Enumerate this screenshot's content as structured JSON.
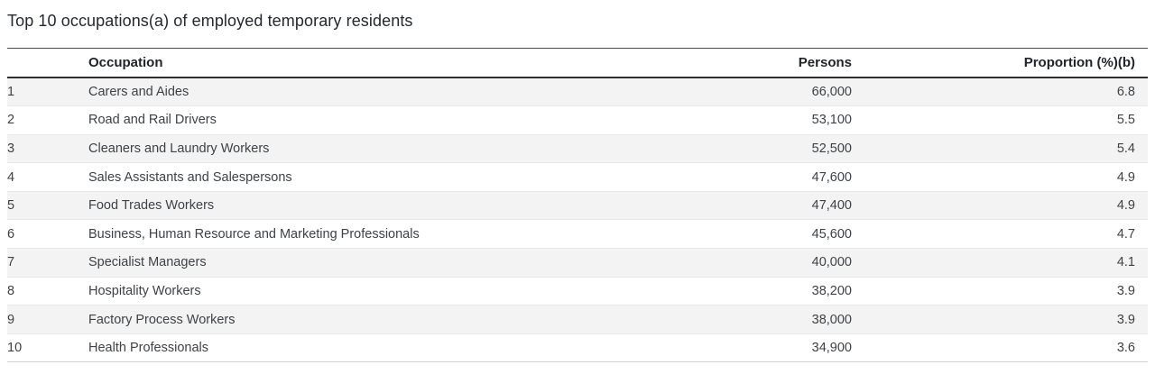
{
  "title": "Top 10 occupations(a) of employed temporary residents",
  "table": {
    "columns": {
      "rank": "",
      "occupation": "Occupation",
      "persons": "Persons",
      "proportion": "Proportion (%)(b)"
    },
    "rows": [
      {
        "rank": "1",
        "occupation": "Carers and Aides",
        "persons": "66,000",
        "proportion": "6.8"
      },
      {
        "rank": "2",
        "occupation": "Road and Rail Drivers",
        "persons": "53,100",
        "proportion": "5.5"
      },
      {
        "rank": "3",
        "occupation": "Cleaners and Laundry Workers",
        "persons": "52,500",
        "proportion": "5.4"
      },
      {
        "rank": "4",
        "occupation": "Sales Assistants and Salespersons",
        "persons": "47,600",
        "proportion": "4.9"
      },
      {
        "rank": "5",
        "occupation": "Food Trades Workers",
        "persons": "47,400",
        "proportion": "4.9"
      },
      {
        "rank": "6",
        "occupation": "Business, Human Resource and Marketing Professionals",
        "persons": "45,600",
        "proportion": "4.7"
      },
      {
        "rank": "7",
        "occupation": "Specialist Managers",
        "persons": "40,000",
        "proportion": "4.1"
      },
      {
        "rank": "8",
        "occupation": "Hospitality Workers",
        "persons": "38,200",
        "proportion": "3.9"
      },
      {
        "rank": "9",
        "occupation": "Factory Process Workers",
        "persons": "38,000",
        "proportion": "3.9"
      },
      {
        "rank": "10",
        "occupation": "Health Professionals",
        "persons": "34,900",
        "proportion": "3.6"
      }
    ]
  },
  "colors": {
    "row_stripe": "#f3f3f3",
    "header_border_top": "#4a4a4a",
    "header_border_bottom": "#2e2e2e",
    "row_border": "#e9e9e9",
    "title_text": "#24292e",
    "body_text": "#3e4246"
  },
  "chart_data": {
    "type": "table",
    "title": "Top 10 occupations(a) of employed temporary residents",
    "columns": [
      "Rank",
      "Occupation",
      "Persons",
      "Proportion (%)(b)"
    ],
    "categories": [
      "Carers and Aides",
      "Road and Rail Drivers",
      "Cleaners and Laundry Workers",
      "Sales Assistants and Salespersons",
      "Food Trades Workers",
      "Business, Human Resource and Marketing Professionals",
      "Specialist Managers",
      "Hospitality Workers",
      "Factory Process Workers",
      "Health Professionals"
    ],
    "series": [
      {
        "name": "Persons",
        "values": [
          66000,
          53100,
          52500,
          47600,
          47400,
          45600,
          40000,
          38200,
          38000,
          34900
        ]
      },
      {
        "name": "Proportion (%)(b)",
        "values": [
          6.8,
          5.5,
          5.4,
          4.9,
          4.9,
          4.7,
          4.1,
          3.9,
          3.9,
          3.6
        ]
      }
    ]
  }
}
